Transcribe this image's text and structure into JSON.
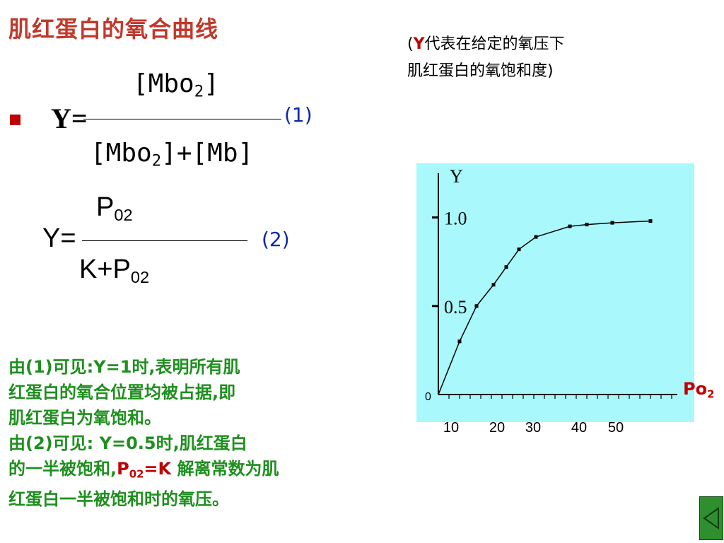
{
  "title": "肌红蛋白的氧合曲线",
  "note": {
    "line1_open": "(",
    "line1_y": "Y",
    "line1_rest": "代表在给定的氧压下",
    "line2": "肌红蛋白的氧饱和度)"
  },
  "formula1": {
    "lhs": "Y=",
    "numerator": "[Mbo",
    "numerator_sub": "2",
    "numerator_close": "]",
    "denominator": "[Mbo",
    "denominator_sub": "2",
    "denominator_rest": "]+[Mb]",
    "number": "(1)"
  },
  "formula2": {
    "lhs": "Y=",
    "numerator": "P",
    "numerator_sub": "02",
    "denominator": "K+P",
    "denominator_sub": "02",
    "number": "(2)"
  },
  "explanation": {
    "line1": "由(1)可见:Y=1时,表明所有肌",
    "line2": "红蛋白的氧合位置均被占据,即",
    "line3": "肌红蛋白为氧饱和。",
    "line4": "由(2)可见: Y=0.5时,肌红蛋白",
    "line5_start": "的一半被饱和,",
    "line5_p": "P",
    "line5_sub": "02",
    "line5_eq": "=K",
    "line5_end": " 解离常数为肌",
    "line6": "红蛋白一半被饱和时的氧压。"
  },
  "chart_data": {
    "type": "line",
    "ylabel": "Y",
    "xlabel": "Po",
    "xlabel_sub": "2",
    "y_ticks": [
      "1.0",
      "0.5"
    ],
    "y_origin_label": "0",
    "x_ticks": [
      10,
      20,
      30,
      40,
      50
    ],
    "xlim": [
      0,
      60
    ],
    "ylim": [
      0,
      1.25
    ],
    "grid": false,
    "background": "#a8f8fc",
    "line_color": "#000000",
    "x": [
      0,
      5,
      9,
      13,
      16,
      19,
      23,
      31,
      35,
      41,
      50
    ],
    "y": [
      0,
      0.3,
      0.5,
      0.62,
      0.72,
      0.82,
      0.89,
      0.95,
      0.96,
      0.97,
      0.98
    ]
  }
}
